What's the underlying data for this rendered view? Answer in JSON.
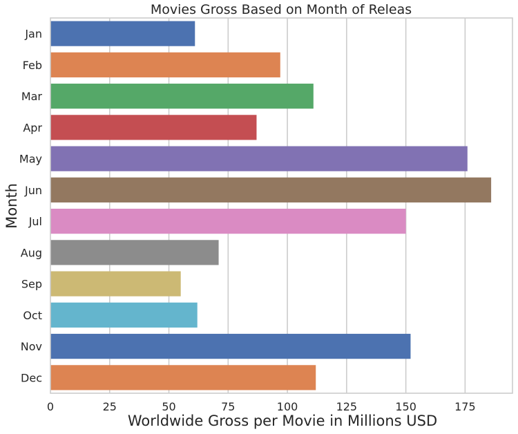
{
  "chart_data": {
    "type": "bar",
    "orientation": "horizontal",
    "title": "Movies Gross Based on Month of Releas",
    "xlabel": "Worldwide Gross per Movie in Millions USD",
    "ylabel": "Month",
    "categories": [
      "Jan",
      "Feb",
      "Mar",
      "Apr",
      "May",
      "Jun",
      "Jul",
      "Aug",
      "Sep",
      "Oct",
      "Nov",
      "Dec"
    ],
    "values": [
      61,
      97,
      111,
      87,
      176,
      186,
      150,
      71,
      55,
      62,
      152,
      112
    ],
    "colors": [
      "#4c72b0",
      "#dd8452",
      "#55a868",
      "#c44e52",
      "#8172b3",
      "#937860",
      "#da8bc3",
      "#8c8c8c",
      "#ccb974",
      "#64b5cd",
      "#4c72b0",
      "#dd8452"
    ],
    "xlim": [
      0,
      195
    ],
    "xticks": [
      0,
      25,
      50,
      75,
      100,
      125,
      150,
      175
    ],
    "grid": "vertical",
    "legend": "none"
  }
}
